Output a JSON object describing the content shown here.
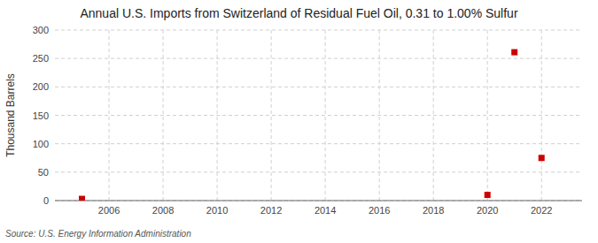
{
  "chart_data": {
    "type": "scatter",
    "title": "Annual U.S. Imports from Switzerland of Residual Fuel Oil, 0.31 to 1.00% Sulfur",
    "ylabel": "Thousand Barrels",
    "source": "Source: U.S. Energy Information Administration",
    "x": [
      2005,
      2020,
      2021,
      2022
    ],
    "values": [
      3,
      10,
      261,
      75
    ],
    "color": "#cc0000",
    "marker": "square",
    "xlim": [
      2004,
      2023.5
    ],
    "ylim": [
      0,
      300
    ],
    "xticks": [
      2006,
      2008,
      2010,
      2012,
      2014,
      2016,
      2018,
      2020,
      2022
    ],
    "yticks": [
      0,
      50,
      100,
      150,
      200,
      250,
      300
    ],
    "grid": true
  }
}
